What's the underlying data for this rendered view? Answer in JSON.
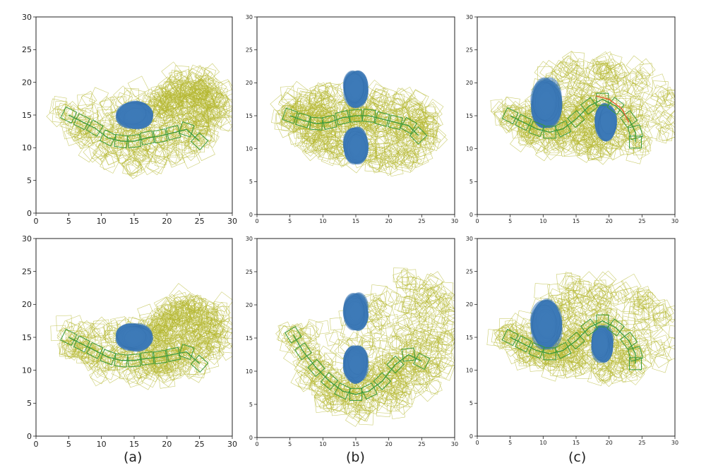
{
  "figure": {
    "captions": [
      "(a)",
      "(b)",
      "(c)"
    ]
  },
  "colors": {
    "obstacle": "#3d7ab8",
    "swept": "#b5b830",
    "path": "#3a9a3a",
    "highlight": "#e06030",
    "axis": "#222222"
  },
  "chart_data": [
    {
      "id": "a-top",
      "type": "scatter",
      "title": "",
      "xlim": [
        0,
        30
      ],
      "ylim": [
        0,
        30
      ],
      "xticks": [
        0,
        5,
        10,
        15,
        20,
        25,
        30
      ],
      "yticks": [
        0,
        5,
        10,
        15,
        20,
        25,
        30
      ],
      "obstacles": [
        [
          15,
          15,
          6,
          4.5
        ]
      ],
      "swept_region": {
        "inner": [
          [
            4.5,
            14
          ],
          [
            8,
            12.5
          ],
          [
            12,
            11
          ],
          [
            16,
            11
          ],
          [
            20,
            12
          ],
          [
            23,
            13
          ],
          [
            26,
            14
          ],
          [
            27,
            16
          ],
          [
            26,
            18.5
          ],
          [
            23,
            19.5
          ],
          [
            20,
            18
          ],
          [
            18.5,
            16
          ]
        ],
        "outer": [
          [
            4,
            16
          ],
          [
            6,
            12
          ],
          [
            10,
            9
          ],
          [
            15,
            7.5
          ],
          [
            20,
            8
          ],
          [
            25,
            10
          ],
          [
            29,
            14
          ],
          [
            29,
            18
          ],
          [
            26,
            20.5
          ],
          [
            22,
            20.5
          ],
          [
            19.5,
            18
          ]
        ]
      },
      "path": [
        [
          5,
          15
        ],
        [
          7,
          14
        ],
        [
          9,
          13
        ],
        [
          11,
          11.5
        ],
        [
          13,
          11
        ],
        [
          15,
          11
        ],
        [
          17,
          11.5
        ],
        [
          19,
          11.8
        ],
        [
          21,
          12.3
        ],
        [
          23,
          12.8
        ],
        [
          25,
          11
        ]
      ]
    },
    {
      "id": "b-top",
      "type": "scatter",
      "title": "",
      "xlim": [
        0,
        30
      ],
      "ylim": [
        0,
        30
      ],
      "xticks": [
        0,
        5,
        10,
        15,
        20,
        25,
        30
      ],
      "yticks": [
        0,
        5,
        10,
        15,
        20,
        25,
        30
      ],
      "obstacles": [
        [
          15,
          19,
          4,
          6
        ],
        [
          15,
          10.5,
          4,
          6
        ]
      ],
      "swept_region": {
        "inner": [
          [
            5,
            15
          ],
          [
            8,
            14
          ],
          [
            11,
            14
          ],
          [
            14,
            15
          ],
          [
            16,
            15
          ],
          [
            19,
            14
          ],
          [
            22,
            14
          ],
          [
            25,
            13
          ]
        ],
        "outer": [
          [
            4,
            16
          ],
          [
            6,
            17.5
          ],
          [
            10,
            18.5
          ],
          [
            19,
            18.5
          ],
          [
            24,
            17
          ],
          [
            27,
            15
          ],
          [
            27,
            12
          ],
          [
            24,
            9
          ],
          [
            20,
            8
          ],
          [
            18,
            9
          ],
          [
            12,
            9
          ],
          [
            9,
            10
          ],
          [
            6,
            12
          ]
        ]
      },
      "path": [
        [
          5,
          15
        ],
        [
          7,
          14.3
        ],
        [
          9,
          13.8
        ],
        [
          11,
          14
        ],
        [
          13,
          14.7
        ],
        [
          15,
          15
        ],
        [
          17,
          15
        ],
        [
          19,
          14.5
        ],
        [
          21,
          14
        ],
        [
          23,
          13.5
        ],
        [
          24.5,
          12
        ]
      ]
    },
    {
      "id": "c-top",
      "type": "scatter",
      "title": "",
      "xlim": [
        0,
        30
      ],
      "ylim": [
        0,
        30
      ],
      "xticks": [
        0,
        5,
        10,
        15,
        20,
        25,
        30
      ],
      "yticks": [
        0,
        5,
        10,
        15,
        20,
        25,
        30
      ],
      "obstacles": [
        [
          10.5,
          17,
          5,
          8
        ],
        [
          19.5,
          14,
          3.5,
          6
        ]
      ],
      "swept_region": {
        "inner": [
          [
            5,
            15
          ],
          [
            8,
            14
          ],
          [
            11,
            13
          ],
          [
            14,
            14
          ],
          [
            17,
            16
          ],
          [
            19,
            17
          ],
          [
            22,
            15
          ],
          [
            24,
            13
          ]
        ],
        "outer": [
          [
            4,
            15.5
          ],
          [
            7,
            12
          ],
          [
            11,
            10.5
          ],
          [
            15,
            11
          ],
          [
            19,
            10
          ],
          [
            24,
            10
          ],
          [
            29,
            13
          ],
          [
            29,
            18
          ],
          [
            26,
            21.5
          ],
          [
            20,
            23
          ],
          [
            14,
            22.5
          ],
          [
            11,
            21
          ]
        ]
      },
      "path": [
        [
          5,
          15
        ],
        [
          7,
          14
        ],
        [
          9,
          13
        ],
        [
          11,
          12.5
        ],
        [
          13,
          13
        ],
        [
          15,
          14.5
        ],
        [
          17,
          16.5
        ],
        [
          19,
          17.5
        ],
        [
          21,
          16.5
        ],
        [
          23,
          14.5
        ],
        [
          24,
          12.5
        ],
        [
          24,
          11
        ]
      ],
      "highlight_path": [
        [
          18,
          18
        ],
        [
          20,
          17.5
        ],
        [
          22,
          16
        ],
        [
          23,
          14
        ]
      ]
    },
    {
      "id": "a-bottom",
      "type": "scatter",
      "title": "",
      "xlim": [
        0,
        30
      ],
      "ylim": [
        0,
        30
      ],
      "xticks": [
        0,
        5,
        10,
        15,
        20,
        25,
        30
      ],
      "yticks": [
        0,
        5,
        10,
        15,
        20,
        25,
        30
      ],
      "obstacles": [
        [
          15,
          15,
          6,
          4.5
        ]
      ],
      "swept_region": {
        "inner": [
          [
            4.5,
            14
          ],
          [
            8,
            12.5
          ],
          [
            12,
            11.5
          ],
          [
            16,
            11
          ],
          [
            20,
            12
          ],
          [
            23,
            13
          ],
          [
            26,
            14
          ],
          [
            27,
            16
          ],
          [
            26,
            18.5
          ],
          [
            23,
            19.5
          ],
          [
            20,
            18
          ],
          [
            18.5,
            16
          ]
        ],
        "outer": [
          [
            4,
            16
          ],
          [
            6,
            12.5
          ],
          [
            10,
            10
          ],
          [
            15,
            9
          ],
          [
            20,
            9.5
          ],
          [
            25,
            10.5
          ],
          [
            29,
            14
          ],
          [
            29,
            18
          ],
          [
            26,
            20.5
          ],
          [
            22,
            20.5
          ],
          [
            19.5,
            18
          ]
        ]
      },
      "path": [
        [
          5,
          15
        ],
        [
          7,
          14
        ],
        [
          9,
          13
        ],
        [
          11,
          12
        ],
        [
          13,
          11.5
        ],
        [
          15,
          11.5
        ],
        [
          17,
          11.8
        ],
        [
          19,
          12
        ],
        [
          21,
          12.4
        ],
        [
          23,
          12.8
        ],
        [
          25,
          11
        ]
      ]
    },
    {
      "id": "b-bottom",
      "type": "scatter",
      "title": "",
      "xlim": [
        0,
        30
      ],
      "ylim": [
        0,
        30
      ],
      "xticks": [
        0,
        5,
        10,
        15,
        20,
        25,
        30
      ],
      "yticks": [
        0,
        5,
        10,
        15,
        20,
        25,
        30
      ],
      "obstacles": [
        [
          15,
          19,
          4,
          6
        ],
        [
          15,
          11,
          4,
          6
        ]
      ],
      "swept_region": {
        "inner": [
          [
            5,
            15
          ],
          [
            8,
            11
          ],
          [
            11,
            7.5
          ],
          [
            14,
            6.5
          ],
          [
            17,
            7.5
          ],
          [
            20,
            10
          ],
          [
            23,
            12.5
          ],
          [
            25,
            12
          ]
        ],
        "outer": [
          [
            5,
            16
          ],
          [
            8,
            9
          ],
          [
            11,
            5.5
          ],
          [
            16,
            4
          ],
          [
            21,
            5
          ],
          [
            26,
            8
          ],
          [
            28,
            11
          ],
          [
            30,
            16
          ],
          [
            29,
            20
          ],
          [
            26,
            23
          ],
          [
            22,
            24
          ],
          [
            19,
            21
          ]
        ]
      },
      "path": [
        [
          5.5,
          15.5
        ],
        [
          7,
          13
        ],
        [
          9,
          10.5
        ],
        [
          11,
          8.5
        ],
        [
          13,
          7
        ],
        [
          15,
          6.5
        ],
        [
          17,
          7
        ],
        [
          19,
          8.5
        ],
        [
          21,
          11
        ],
        [
          23,
          12.5
        ],
        [
          25,
          11.5
        ]
      ]
    },
    {
      "id": "c-bottom",
      "type": "scatter",
      "title": "",
      "xlim": [
        0,
        30
      ],
      "ylim": [
        0,
        30
      ],
      "xticks": [
        0,
        5,
        10,
        15,
        20,
        25,
        30
      ],
      "yticks": [
        0,
        5,
        10,
        15,
        20,
        25,
        30
      ],
      "obstacles": [
        [
          10.5,
          17,
          5,
          8
        ],
        [
          19,
          14,
          3.5,
          6
        ]
      ],
      "swept_region": {
        "inner": [
          [
            5,
            15
          ],
          [
            8,
            14
          ],
          [
            11,
            13
          ],
          [
            14,
            14
          ],
          [
            17,
            16
          ],
          [
            19,
            17
          ],
          [
            22,
            15
          ],
          [
            24,
            13
          ]
        ],
        "outer": [
          [
            4,
            15.5
          ],
          [
            7,
            12
          ],
          [
            11,
            10.5
          ],
          [
            15,
            11
          ],
          [
            19,
            10
          ],
          [
            24,
            10
          ],
          [
            29,
            13
          ],
          [
            29,
            18
          ],
          [
            26,
            21.5
          ],
          [
            20,
            23
          ],
          [
            14,
            22.5
          ],
          [
            11,
            21
          ]
        ]
      },
      "path": [
        [
          5,
          15
        ],
        [
          7,
          14
        ],
        [
          9,
          13
        ],
        [
          11,
          12.5
        ],
        [
          13,
          13
        ],
        [
          15,
          14.5
        ],
        [
          17,
          16.5
        ],
        [
          19,
          17.5
        ],
        [
          21,
          16.5
        ],
        [
          23,
          14.5
        ],
        [
          24,
          12.5
        ],
        [
          24,
          11
        ]
      ]
    }
  ]
}
